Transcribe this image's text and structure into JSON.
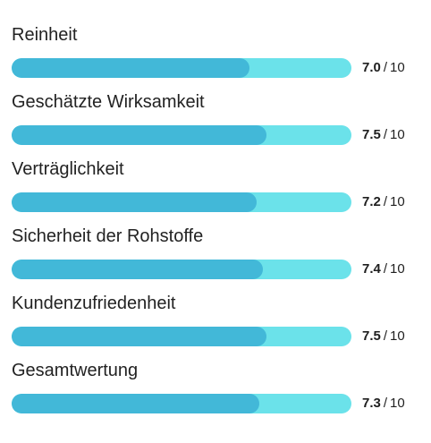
{
  "colors": {
    "fill": "#42b8d8",
    "track": "#6be2ea"
  },
  "scale": {
    "separator": "/",
    "max": "10"
  },
  "ratings": [
    {
      "label": "Reinheit",
      "value": "7.0",
      "fraction": 0.7
    },
    {
      "label": "Geschätzte Wirksamkeit",
      "value": "7.5",
      "fraction": 0.75
    },
    {
      "label": "Verträglichkeit",
      "value": "7.2",
      "fraction": 0.72
    },
    {
      "label": "Sicherheit der Rohstoffe",
      "value": "7.4",
      "fraction": 0.74
    },
    {
      "label": "Kundenzufriedenheit",
      "value": "7.5",
      "fraction": 0.75
    },
    {
      "label": "Gesamtwertung",
      "value": "7.3",
      "fraction": 0.73
    }
  ]
}
